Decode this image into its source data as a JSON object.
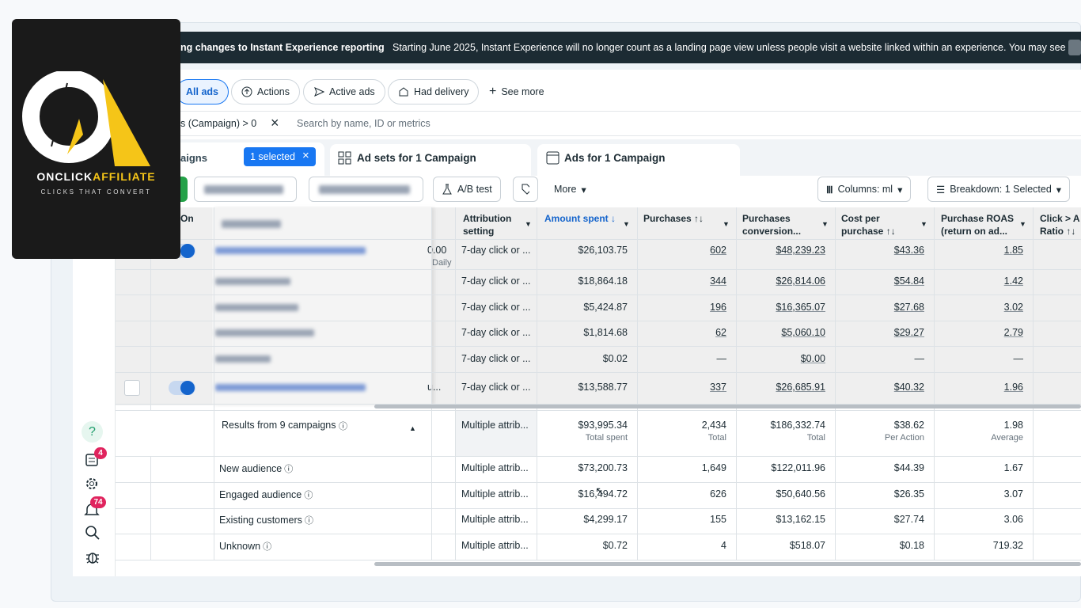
{
  "logo": {
    "brand_a": "ONCLICK",
    "brand_b": "AFFILIATE",
    "tagline": "CLICKS THAT CONVERT"
  },
  "banner": {
    "title": "ng changes to Instant Experience reporting",
    "message": "Starting June 2025, Instant Experience will no longer count as a landing page view unless people visit a website linked within an experience. You may see a r"
  },
  "filters": [
    "All ads",
    "Actions",
    "Active ads",
    "Had delivery",
    "See more"
  ],
  "search": {
    "filter": "s (Campaign) > 0",
    "placeholder": "Search by name, ID or metrics"
  },
  "tabs": {
    "campaigns": "aigns",
    "selected": "1 selected",
    "ad_sets": "Ad sets for 1 Campaign",
    "ads": "Ads for 1 Campaign"
  },
  "toolbar": {
    "ab_test": "A/B test",
    "more": "More",
    "columns": "Columns: ml",
    "breakdown": "Breakdown: 1 Selected"
  },
  "table": {
    "headers": [
      "On",
      "Attribution setting",
      "Amount spent ↓",
      "Purchases ↑↓",
      "Purchases conversion...",
      "Cost per purchase ↑↓",
      "Purchase ROAS (return on ad...",
      "Click > A Ratio ↑↓"
    ],
    "rows": [
      {
        "budget": "0.00",
        "budget_type": "Daily",
        "cells": [
          "7-day click or ...",
          "$26,103.75",
          "602",
          "$48,239.23",
          "$43.36",
          "1.85"
        ]
      },
      {
        "cells": [
          "7-day click or ...",
          "$18,864.18",
          "344",
          "$26,814.06",
          "$54.84",
          "1.42"
        ]
      },
      {
        "cells": [
          "7-day click or ...",
          "$5,424.87",
          "196",
          "$16,365.07",
          "$27.68",
          "3.02"
        ]
      },
      {
        "cells": [
          "7-day click or ...",
          "$1,814.68",
          "62",
          "$5,060.10",
          "$29.27",
          "2.79"
        ]
      },
      {
        "cells": [
          "7-day click or ...",
          "$0.02",
          "—",
          "$0.00",
          "—",
          "—"
        ]
      },
      {
        "budget": "u...",
        "cells": [
          "7-day click or ...",
          "$13,588.77",
          "337",
          "$26,685.91",
          "$40.32",
          "1.96"
        ]
      }
    ],
    "summary": {
      "label": "Results from 9 campaigns",
      "cells": [
        "Multiple attrib...",
        "$93,995.34",
        "2,434",
        "$186,332.74",
        "$38.62",
        "1.98"
      ],
      "notes": [
        "Total spent",
        "Total",
        "Total",
        "Per Action",
        "Average"
      ]
    },
    "breakdown": [
      {
        "label": "New audience",
        "cells": [
          "Multiple attrib...",
          "$73,200.73",
          "1,649",
          "$122,011.96",
          "$44.39",
          "1.67"
        ]
      },
      {
        "label": "Engaged audience",
        "cells": [
          "Multiple attrib...",
          "$16,494.72",
          "626",
          "$50,640.56",
          "$26.35",
          "3.07"
        ]
      },
      {
        "label": "Existing customers",
        "cells": [
          "Multiple attrib...",
          "$4,299.17",
          "155",
          "$13,162.15",
          "$27.74",
          "3.06"
        ]
      },
      {
        "label": "Unknown",
        "cells": [
          "Multiple attrib...",
          "$0.72",
          "4",
          "$518.07",
          "$0.18",
          "719.32"
        ]
      }
    ]
  },
  "sidebar": {
    "help": "?",
    "badge_1": "4",
    "badge_2": "74"
  }
}
